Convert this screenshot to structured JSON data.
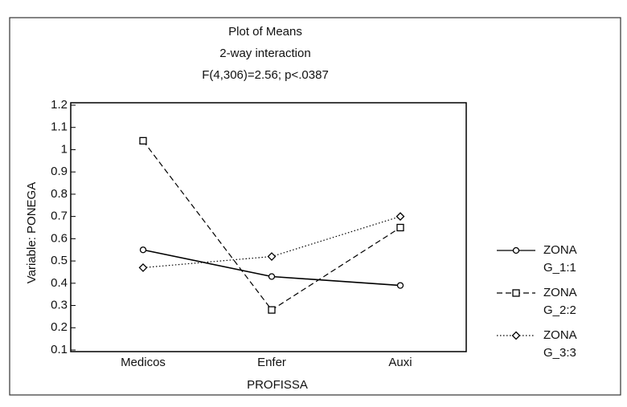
{
  "chart_data": {
    "type": "line",
    "title": "Plot of Means",
    "subtitle": "2-way interaction",
    "annotation": "F(4,306)=2.56; p<.0387",
    "x_label": "PROFISSA",
    "y_label": "Variable: PONEGA",
    "categories": [
      "Medicos",
      "Enfer",
      "Auxi"
    ],
    "series": [
      {
        "name": "ZONA G_1:1",
        "color": "#000000",
        "line_style": "solid",
        "marker": "circle",
        "values": [
          0.55,
          0.43,
          0.39
        ]
      },
      {
        "name": "ZONA G_2:2",
        "color": "#000000",
        "line_style": "dashed",
        "marker": "square",
        "values": [
          1.04,
          0.28,
          0.65
        ]
      },
      {
        "name": "ZONA G_3:3",
        "color": "#000000",
        "line_style": "dotted",
        "marker": "diamond",
        "values": [
          0.47,
          0.52,
          0.7
        ]
      }
    ],
    "ylim": [
      0.1,
      1.2
    ],
    "yticks": [
      0.1,
      0.2,
      0.3,
      0.4,
      0.5,
      0.6,
      0.7,
      0.8,
      0.9,
      1,
      1.1,
      1.2
    ],
    "legend": "right"
  }
}
